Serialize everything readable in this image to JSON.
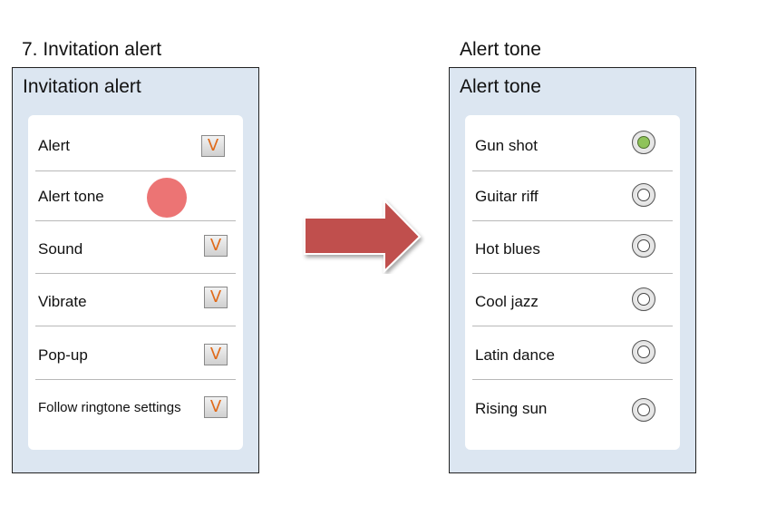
{
  "left_screen": {
    "caption": "7. Invitation alert",
    "title": "Invitation alert",
    "rows": [
      {
        "label": "Alert",
        "checkbox": "V"
      },
      {
        "label": "Alert tone"
      },
      {
        "label": "Sound",
        "checkbox": "V"
      },
      {
        "label": "Vibrate",
        "checkbox": "V"
      },
      {
        "label": "Pop-up",
        "checkbox": "V"
      },
      {
        "label": "Follow ringtone settings",
        "checkbox": "V"
      }
    ]
  },
  "right_screen": {
    "caption": "Alert tone",
    "title": "Alert tone",
    "selected_option": "Gun shot",
    "options": [
      {
        "label": "Gun shot",
        "selected": true
      },
      {
        "label": "Guitar riff",
        "selected": false
      },
      {
        "label": "Hot blues",
        "selected": false
      },
      {
        "label": "Cool jazz",
        "selected": false
      },
      {
        "label": "Latin dance",
        "selected": false
      },
      {
        "label": "Rising sun",
        "selected": false
      }
    ]
  },
  "colors": {
    "screen_background": "#dce6f1",
    "touch_indicator": "#ec7474",
    "arrow": "#c0504d",
    "checkmark": "#e06a1a",
    "radio_selected": "#8fc35a"
  }
}
